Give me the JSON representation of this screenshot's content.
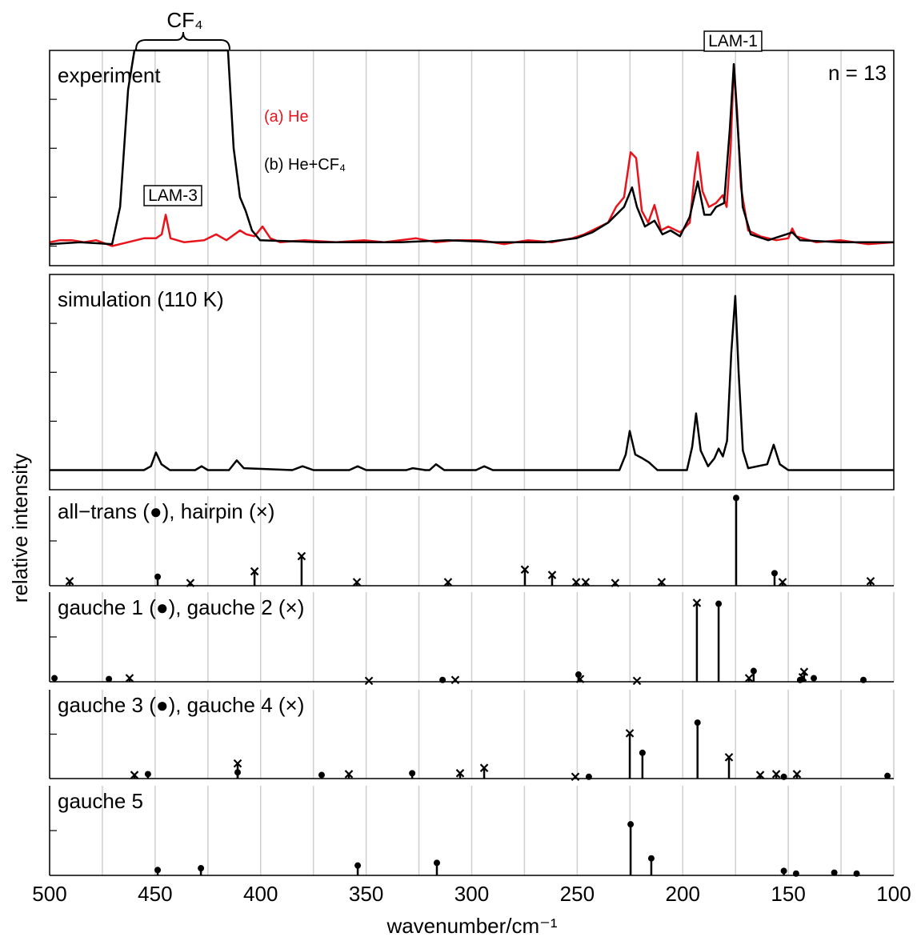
{
  "chart_data": [
    {
      "type": "line",
      "title": "experiment",
      "ylim": [
        -0.1,
        1.0
      ],
      "yticks": [
        0,
        0.25,
        0.5,
        0.75
      ],
      "annotations": [
        "LAM-3",
        "LAM-1",
        "CF₄",
        "n = 13"
      ],
      "series": [
        {
          "name": "(a) He",
          "color": "#e8141c",
          "x": [
            500,
            495.1,
            489.4,
            483.7,
            478.0,
            470.4,
            462.8,
            455.3,
            449.6,
            446.9,
            445.0,
            442.7,
            436.3,
            426.8,
            421.1,
            416.2,
            409.8,
            406.7,
            402.9,
            399.1,
            395.4,
            390.8,
            379.4,
            364.3,
            351.0,
            341.5,
            326.3,
            317.1,
            307.4,
            296.0,
            284.6,
            273.3,
            261.9,
            252.4,
            246.7,
            241.0,
            235.4,
            231.6,
            227.8,
            224.7,
            222.1,
            219.4,
            216.4,
            213.4,
            210.3,
            206.9,
            201.2,
            196.7,
            194.4,
            192.9,
            190.6,
            187.6,
            184.2,
            181.1,
            179.2,
            177.3,
            175.8,
            174.3,
            172.4,
            169.0,
            163.3,
            155.7,
            150.0,
            148.1,
            146.3,
            136.8,
            125.4,
            112.1,
            100
          ],
          "values": [
            0.02,
            0.03,
            0.03,
            0.02,
            0.03,
            0.0,
            0.02,
            0.04,
            0.04,
            0.06,
            0.16,
            0.04,
            0.02,
            0.03,
            0.06,
            0.03,
            0.08,
            0.06,
            0.05,
            0.1,
            0.04,
            0.02,
            0.03,
            0.02,
            0.03,
            0.02,
            0.04,
            0.02,
            0.03,
            0.03,
            0.01,
            0.03,
            0.02,
            0.04,
            0.06,
            0.09,
            0.12,
            0.2,
            0.25,
            0.48,
            0.45,
            0.18,
            0.12,
            0.21,
            0.08,
            0.1,
            0.07,
            0.12,
            0.36,
            0.48,
            0.28,
            0.2,
            0.22,
            0.26,
            0.2,
            0.5,
            0.93,
            0.7,
            0.3,
            0.08,
            0.05,
            0.03,
            0.04,
            0.09,
            0.05,
            0.02,
            0.03,
            0.01,
            0.02
          ]
        },
        {
          "name": "(b) He+CF₄",
          "color": "#000000",
          "x": [
            500,
            485.6,
            470.4,
            466.6,
            462.8,
            459.8,
            415.5,
            412.8,
            409.8,
            407.1,
            404.1,
            400.3,
            371.8,
            333.9,
            311.2,
            288.4,
            265.7,
            250.5,
            242.9,
            235.3,
            227.8,
            224.0,
            221.7,
            217.9,
            213.4,
            209.6,
            205.8,
            201.3,
            196.7,
            192.9,
            189.8,
            186.8,
            184.2,
            180.4,
            177.7,
            175.8,
            173.9,
            171.6,
            167.8,
            159.5,
            148.1,
            144.4,
            125.4,
            100
          ],
          "values": [
            0.01,
            0.02,
            0.01,
            0.2,
            0.8,
            1.0,
            1.0,
            0.5,
            0.25,
            0.18,
            0.08,
            0.03,
            0.02,
            0.02,
            0.03,
            0.02,
            0.02,
            0.04,
            0.07,
            0.12,
            0.2,
            0.3,
            0.2,
            0.1,
            0.13,
            0.06,
            0.08,
            0.05,
            0.15,
            0.33,
            0.16,
            0.16,
            0.2,
            0.22,
            0.6,
            0.93,
            0.6,
            0.2,
            0.06,
            0.03,
            0.07,
            0.03,
            0.02,
            0.02
          ]
        }
      ]
    },
    {
      "type": "line",
      "title": "simulation (110 K)",
      "ylim": [
        -0.1,
        1.0
      ],
      "yticks": [
        0,
        0.25,
        0.5,
        0.75
      ],
      "series": [
        {
          "color": "#000000",
          "x": [
            500,
            470,
            455.3,
            452,
            449.6,
            447,
            443,
            431,
            428,
            425,
            415,
            411.3,
            408,
            385,
            380.2,
            375,
            358,
            354,
            350,
            331,
            327.9,
            322,
            320,
            316.9,
            313,
            298,
            294.1,
            290,
            230,
            227,
            225.1,
            222.5,
            219,
            216,
            212,
            198,
            195.5,
            193.7,
            191.5,
            188,
            185,
            183.0,
            181,
            179,
            177,
            175.1,
            173.5,
            171.5,
            169,
            160,
            156.9,
            154,
            150,
            100
          ],
          "values": [
            0.0,
            0.0,
            0.0,
            0.02,
            0.09,
            0.03,
            0.0,
            0.0,
            0.02,
            0.0,
            0.0,
            0.05,
            0.01,
            0.0,
            0.02,
            0.0,
            0.0,
            0.02,
            0.0,
            0.0,
            0.01,
            0.0,
            0.0,
            0.03,
            0.0,
            0.0,
            0.02,
            0.0,
            0.0,
            0.08,
            0.2,
            0.08,
            0.06,
            0.04,
            0.0,
            0.0,
            0.12,
            0.29,
            0.1,
            0.02,
            0.06,
            0.11,
            0.07,
            0.15,
            0.6,
            0.89,
            0.5,
            0.1,
            0.01,
            0.03,
            0.13,
            0.03,
            0.0,
            0.0
          ]
        }
      ]
    },
    {
      "type": "stem",
      "title": "all−trans (●), hairpin (×)",
      "ylim": [
        0,
        1
      ],
      "yticks": [
        0.5
      ],
      "series": [
        {
          "marker": "dot",
          "x": [
            448.8,
            174.7,
            156.5
          ],
          "values": [
            0.1,
            0.98,
            0.14
          ]
        },
        {
          "marker": "cross",
          "x": [
            490.5,
            433.3,
            402.9,
            380.6,
            354.4,
            311.2,
            274.8,
            261.9,
            250.5,
            246.0,
            232.0,
            210.0,
            152.7,
            111.0
          ],
          "values": [
            0.05,
            0.03,
            0.16,
            0.33,
            0.04,
            0.04,
            0.18,
            0.12,
            0.04,
            0.04,
            0.03,
            0.04,
            0.04,
            0.05
          ]
        }
      ]
    },
    {
      "type": "stem",
      "title": "gauche 1 (●), gauche 2 (×)",
      "ylim": [
        0,
        1
      ],
      "yticks": [
        0.5
      ],
      "series": [
        {
          "marker": "dot",
          "x": [
            497.7,
            471.9,
            313.8,
            249.4,
            183.0,
            166.4,
            144.4,
            137.9,
            114.4
          ],
          "values": [
            0.04,
            0.03,
            0.02,
            0.08,
            0.87,
            0.12,
            0.02,
            0.04,
            0.02
          ]
        },
        {
          "marker": "cross",
          "x": [
            462.1,
            348.7,
            307.8,
            248.6,
            221.7,
            193.3,
            168.6,
            143.2,
            142.5
          ],
          "values": [
            0.04,
            0.01,
            0.02,
            0.03,
            0.01,
            0.88,
            0.04,
            0.05,
            0.11
          ]
        }
      ]
    },
    {
      "type": "stem",
      "title": "gauche 3 (●), gauche 4 (×)",
      "ylim": [
        0,
        1
      ],
      "yticks": [
        0.5
      ],
      "series": [
        {
          "marker": "dot",
          "x": [
            453.4,
            410.9,
            371.1,
            328.2,
            244.5,
            219.1,
            193.0,
            152.1,
            103.0
          ],
          "values": [
            0.05,
            0.07,
            0.04,
            0.06,
            0.02,
            0.29,
            0.63,
            0.02,
            0.03
          ]
        },
        {
          "marker": "cross",
          "x": [
            459.8,
            410.9,
            358.2,
            305.5,
            294.1,
            250.9,
            225.1,
            178.1,
            163.3,
            155.7,
            145.9
          ],
          "values": [
            0.04,
            0.17,
            0.05,
            0.06,
            0.12,
            0.02,
            0.51,
            0.24,
            0.04,
            0.05,
            0.05
          ]
        }
      ]
    },
    {
      "type": "stem",
      "title": "gauche 5",
      "ylim": [
        0,
        1
      ],
      "yticks": [
        0.5
      ],
      "xlim": [
        500,
        100
      ],
      "xticks": [
        500,
        450,
        400,
        350,
        300,
        250,
        200,
        150,
        100
      ],
      "xminor": [
        475,
        425,
        375,
        325,
        275,
        225,
        175,
        125
      ],
      "xlabel": "wavenumber/cm⁻¹",
      "ylabel": "relative intensity",
      "series": [
        {
          "marker": "dot",
          "x": [
            448.8,
            428.3,
            354.0,
            316.5,
            224.7,
            214.9,
            152.1,
            146.3,
            128.2,
            117.6
          ],
          "values": [
            0.06,
            0.08,
            0.11,
            0.14,
            0.57,
            0.19,
            0.05,
            0.02,
            0.03,
            0.02
          ]
        }
      ]
    }
  ]
}
